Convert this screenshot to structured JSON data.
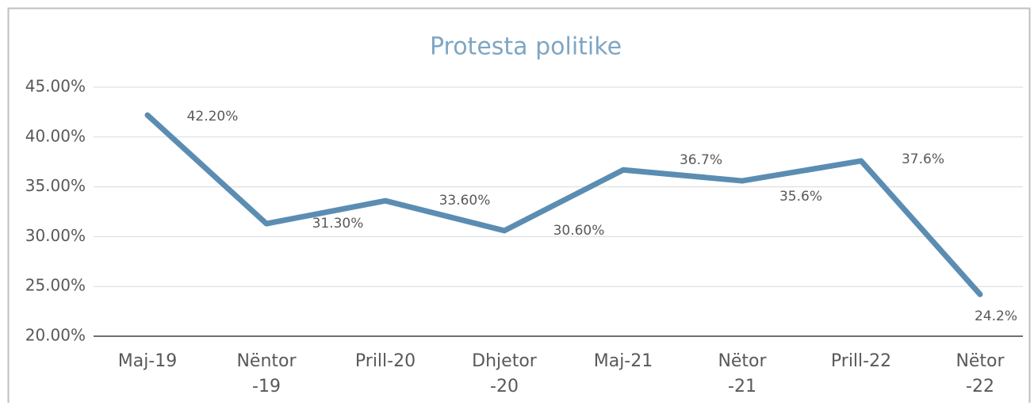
{
  "chart_data": {
    "type": "line",
    "title": "Protesta politike",
    "categories": [
      "Maj-19",
      "Nëntor -19",
      "Prill-20",
      "Dhjetor -20",
      "Maj-21",
      "Nëtor -21",
      "Prill-22",
      "Nëtor -22"
    ],
    "series": [
      {
        "name": "Protesta politike",
        "color": "#5b8db2",
        "values": [
          42.2,
          31.3,
          33.6,
          30.6,
          36.7,
          35.6,
          37.6,
          24.2
        ],
        "value_labels": [
          "42.20%",
          "31.30%",
          "33.60%",
          "30.60%",
          "36.7%",
          "35.6%",
          "37.6%",
          "24.2%"
        ]
      }
    ],
    "ylim": [
      20,
      45
    ],
    "yticks": [
      {
        "value": 20,
        "label": "20.00%"
      },
      {
        "value": 25,
        "label": "25.00%"
      },
      {
        "value": 30,
        "label": "30.00%"
      },
      {
        "value": 35,
        "label": "35.00%"
      },
      {
        "value": 40,
        "label": "40.00%"
      },
      {
        "value": 45,
        "label": "45.00%"
      }
    ],
    "grid": true
  }
}
